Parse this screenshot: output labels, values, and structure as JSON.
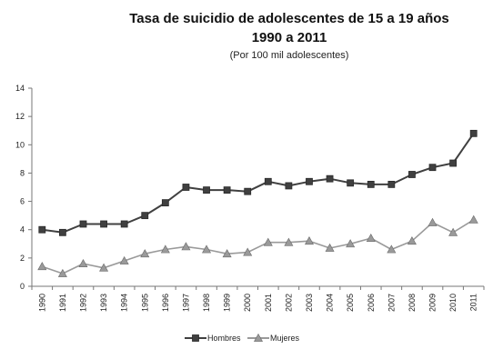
{
  "chart_data": {
    "type": "line",
    "title_lines": [
      "Tasa de suicidio de adolescentes  de 15 a 19 años",
      "1990 a 2011"
    ],
    "subtitle": "(Por 100 mil adolescentes)",
    "xlabel": "",
    "ylabel": "",
    "categories": [
      "1990",
      "1991",
      "1992",
      "1993",
      "1994",
      "1995",
      "1996",
      "1997",
      "1998",
      "1999",
      "2000",
      "2001",
      "2002",
      "2003",
      "2004",
      "2005",
      "2006",
      "2007",
      "2008",
      "2009",
      "2010",
      "2011"
    ],
    "ylim": [
      0,
      14
    ],
    "yticks": [
      "0",
      "2",
      "4",
      "6",
      "8",
      "10",
      "12",
      "14"
    ],
    "grid": false,
    "legend_position": "bottom",
    "series": [
      {
        "name": "Hombres",
        "marker": "square",
        "color": "#404040",
        "values": [
          4.0,
          3.8,
          4.4,
          4.4,
          4.4,
          5.0,
          5.9,
          7.0,
          6.8,
          6.8,
          6.7,
          7.4,
          7.1,
          7.4,
          7.6,
          7.3,
          7.2,
          7.2,
          7.9,
          8.4,
          8.7,
          10.8
        ]
      },
      {
        "name": "Mujeres",
        "marker": "triangle",
        "color": "#9a9a9a",
        "values": [
          1.4,
          0.9,
          1.6,
          1.3,
          1.8,
          2.3,
          2.6,
          2.8,
          2.6,
          2.3,
          2.4,
          3.1,
          3.1,
          3.2,
          2.7,
          3.0,
          3.4,
          2.6,
          3.2,
          4.5,
          3.8,
          4.7
        ]
      }
    ]
  }
}
